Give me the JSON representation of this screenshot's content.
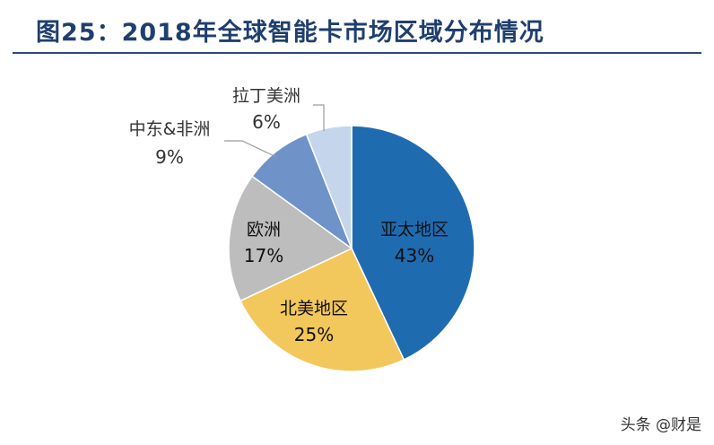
{
  "title": "图25：2018年全球智能卡市场区域分布情况",
  "watermark": "头条 @财是",
  "colors": {
    "title": "#1f3f6e",
    "rule": "#2b4a7e"
  },
  "chart_data": {
    "type": "pie",
    "title": "",
    "start_angle_deg": 0,
    "direction": "clockwise",
    "slices": [
      {
        "label": "亚太地区",
        "value": 43,
        "value_label": "43%",
        "color": "#1f6bb0",
        "text_color": "#111111",
        "label_inside": true
      },
      {
        "label": "北美地区",
        "value": 25,
        "value_label": "25%",
        "color": "#f2c75c",
        "text_color": "#111111",
        "label_inside": true
      },
      {
        "label": "欧洲",
        "value": 17,
        "value_label": "17%",
        "color": "#bdbdbd",
        "text_color": "#111111",
        "label_inside": true
      },
      {
        "label": "中东&非洲",
        "value": 9,
        "value_label": "9%",
        "color": "#6f93c9",
        "text_color": "#333333",
        "label_inside": false
      },
      {
        "label": "拉丁美洲",
        "value": 6,
        "value_label": "6%",
        "color": "#c5d6ec",
        "text_color": "#333333",
        "label_inside": false
      }
    ]
  }
}
